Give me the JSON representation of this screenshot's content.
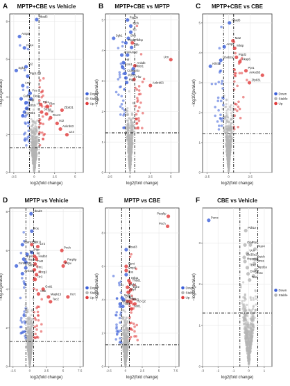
{
  "figure": {
    "panels_common": {
      "xlabel": "log2(fold change)",
      "ylabel": "−log10(pvalue)",
      "legend": {
        "position": "right-middle",
        "entries": [
          {
            "name": "Down",
            "color": "#3b5fd9"
          },
          {
            "name": "Stable",
            "color": "#b4b4b4"
          },
          {
            "name": "Up",
            "color": "#e03a3a"
          }
        ]
      }
    }
  },
  "chart_data": [
    {
      "letter": "A",
      "title": "MPTP+CBE vs Vehicle",
      "type": "scatter",
      "xlim": [
        -3,
        6
      ],
      "ylim": [
        0,
        8.4
      ],
      "xticks": [
        -2.5,
        0,
        2.5,
        5
      ],
      "yticks": [
        0,
        2,
        4,
        6,
        8
      ],
      "vlines": [
        -0.58,
        0.58
      ],
      "hline": 1.3,
      "legend": true,
      "labeled_points": [
        {
          "label": "Hbad3",
          "x": 0.3,
          "y": 8.1,
          "class": "Down"
        },
        {
          "label": "Antp2",
          "x": -1.8,
          "y": 7.2,
          "class": "Down"
        },
        {
          "label": "Pdk4",
          "x": -1.2,
          "y": 6.6,
          "class": "Down"
        },
        {
          "label": "Tc2",
          "x": -1.0,
          "y": 5.6,
          "class": "Down"
        },
        {
          "label": "Sgk1",
          "x": -2.2,
          "y": 5.4,
          "class": "Down"
        },
        {
          "label": "Ppp1r3d",
          "x": -0.8,
          "y": 5.1,
          "class": "Down"
        },
        {
          "label": "Amn",
          "x": -1.4,
          "y": 4.6,
          "class": "Down"
        },
        {
          "label": "Fos",
          "x": -0.5,
          "y": 4.2,
          "class": "Down"
        },
        {
          "label": "Gsbs",
          "x": -1.6,
          "y": 3.9,
          "class": "Down"
        },
        {
          "label": "Dio2",
          "x": -0.4,
          "y": 3.9,
          "class": "Down"
        },
        {
          "label": "Nebl",
          "x": -1.0,
          "y": 3.7,
          "class": "Down"
        },
        {
          "label": "Ptk1",
          "x": 0.8,
          "y": 3.6,
          "class": "Up"
        },
        {
          "label": "Klf15",
          "x": -0.9,
          "y": 3.4,
          "class": "Down"
        },
        {
          "label": "Rbx",
          "x": 1.6,
          "y": 3.5,
          "class": "Up"
        },
        {
          "label": "Stc",
          "x": -1.2,
          "y": 3.2,
          "class": "Down"
        },
        {
          "label": "Cyp8b1",
          "x": -1.4,
          "y": 3.0,
          "class": "Down"
        },
        {
          "label": "Slc6a",
          "x": 0.9,
          "y": 3.2,
          "class": "Up"
        },
        {
          "label": "Ffar",
          "x": 1.5,
          "y": 3.1,
          "class": "Up"
        },
        {
          "label": "Rcor2",
          "x": 2.0,
          "y": 2.9,
          "class": "Up"
        },
        {
          "label": "Ist2",
          "x": 2.8,
          "y": 2.6,
          "class": "Up"
        },
        {
          "label": "Zfp831",
          "x": 3.4,
          "y": 3.3,
          "class": "Up"
        },
        {
          "label": "Ankrd63",
          "x": 3.2,
          "y": 2.3,
          "class": "Up"
        },
        {
          "label": "Ucn",
          "x": 4.0,
          "y": 2.0,
          "class": "Up"
        }
      ]
    },
    {
      "letter": "B",
      "title": "MPTP+CBE vs MPTP",
      "type": "scatter",
      "xlim": [
        -3,
        6
      ],
      "ylim": [
        0,
        5.2
      ],
      "xticks": [
        -2.5,
        0,
        2.5,
        5
      ],
      "yticks": [
        0,
        1,
        2,
        3,
        4,
        5
      ],
      "vlines": [
        -0.58,
        0.58
      ],
      "hline": 1.3,
      "legend": false,
      "labeled_points": [
        {
          "label": "Ppp3n",
          "x": -0.3,
          "y": 5.0,
          "class": "Down"
        },
        {
          "label": "Ptch",
          "x": 0.1,
          "y": 4.8,
          "class": "Down"
        },
        {
          "label": "Fn",
          "x": 0.1,
          "y": 4.6,
          "class": "Down"
        },
        {
          "label": "Sgk1",
          "x": -2.0,
          "y": 4.4,
          "class": "Down"
        },
        {
          "label": "Sfrp",
          "x": -0.2,
          "y": 4.4,
          "class": "Down"
        },
        {
          "label": "Pfkfbp",
          "x": 0.3,
          "y": 4.25,
          "class": "Up"
        },
        {
          "label": "Ptpdc",
          "x": -0.5,
          "y": 4.25,
          "class": "Down"
        },
        {
          "label": "Hbb",
          "x": 0.2,
          "y": 4.1,
          "class": "Down"
        },
        {
          "label": "Amnd",
          "x": -0.3,
          "y": 3.85,
          "class": "Down"
        },
        {
          "label": "Amn",
          "x": -1.0,
          "y": 3.85,
          "class": "Down"
        },
        {
          "label": "Hlf",
          "x": -0.8,
          "y": 3.6,
          "class": "Down"
        },
        {
          "label": "Ucn",
          "x": 5.0,
          "y": 3.7,
          "class": "Up"
        },
        {
          "label": "Ankdb",
          "x": 0.6,
          "y": 3.5,
          "class": "Up"
        },
        {
          "label": "Ecm1",
          "x": -0.9,
          "y": 3.45,
          "class": "Down"
        },
        {
          "label": "Pklot1",
          "x": 0.4,
          "y": 3.4,
          "class": "Down"
        },
        {
          "label": "Cidea",
          "x": -0.6,
          "y": 3.25,
          "class": "Down"
        },
        {
          "label": "Stx",
          "x": 0.4,
          "y": 3.25,
          "class": "Down"
        },
        {
          "label": "Pdzrn",
          "x": -0.5,
          "y": 3.1,
          "class": "Down"
        },
        {
          "label": "Ffar",
          "x": 0.5,
          "y": 3.05,
          "class": "Up"
        },
        {
          "label": "Ptgs",
          "x": -0.4,
          "y": 2.95,
          "class": "Down"
        },
        {
          "label": "Ankrd63",
          "x": 2.5,
          "y": 2.85,
          "class": "Up"
        }
      ]
    },
    {
      "letter": "C",
      "title": "MPTP+CBE vs CBE",
      "type": "scatter",
      "xlim": [
        -3,
        5
      ],
      "ylim": [
        0,
        5.3
      ],
      "xticks": [
        -2.5,
        0,
        2.5
      ],
      "yticks": [
        0,
        1,
        2,
        3,
        4,
        5
      ],
      "vlines": [
        -0.58,
        0.58
      ],
      "hline": 1.3,
      "legend": true,
      "labeled_points": [
        {
          "label": "Hbad3",
          "x": 0.1,
          "y": 5.0,
          "class": "Down"
        },
        {
          "label": "Ma2",
          "x": 0.5,
          "y": 4.4,
          "class": "Up"
        },
        {
          "label": "Antp2",
          "x": -0.5,
          "y": 4.2,
          "class": "Down"
        },
        {
          "label": "Mlxip",
          "x": 0.7,
          "y": 4.15,
          "class": "Up"
        },
        {
          "label": "Ptgd2",
          "x": 0.9,
          "y": 3.85,
          "class": "Up"
        },
        {
          "label": "Ubsb2a",
          "x": -0.9,
          "y": 3.75,
          "class": "Down"
        },
        {
          "label": "Akap6",
          "x": 1.3,
          "y": 3.7,
          "class": "Up"
        },
        {
          "label": "Klhl11",
          "x": -2.1,
          "y": 3.55,
          "class": "Down"
        },
        {
          "label": "Ppr1",
          "x": 2.0,
          "y": 3.4,
          "class": "Up"
        },
        {
          "label": "Ankrd63",
          "x": 3.9,
          "y": 3.25,
          "class": "Up"
        },
        {
          "label": "Zfp831",
          "x": 2.4,
          "y": 3.0,
          "class": "Up"
        }
      ]
    },
    {
      "letter": "D",
      "title": "MPTP vs Vehicle",
      "type": "scatter",
      "xlim": [
        -3,
        8
      ],
      "ylim": [
        0,
        8.2
      ],
      "xticks": [
        -2.5,
        0,
        2.5,
        5,
        7.5
      ],
      "yticks": [
        0,
        2,
        4,
        6,
        8
      ],
      "vlines": [
        -0.58,
        0.58
      ],
      "hline": 1.3,
      "legend": true,
      "labeled_points": [
        {
          "label": "Hbad3",
          "x": 0.2,
          "y": 7.9,
          "class": "Down"
        },
        {
          "label": "Fos",
          "x": 0.3,
          "y": 7.0,
          "class": "Down"
        },
        {
          "label": "Manch11",
          "x": -1.1,
          "y": 6.3,
          "class": "Down"
        },
        {
          "label": "Stk11",
          "x": 0.3,
          "y": 6.3,
          "class": "Up"
        },
        {
          "label": "Lrr2",
          "x": 1.2,
          "y": 6.2,
          "class": "Up"
        },
        {
          "label": "Ptpn",
          "x": 0.3,
          "y": 5.9,
          "class": "Down"
        },
        {
          "label": "Pnch",
          "x": 4.8,
          "y": 6.0,
          "class": "Up"
        },
        {
          "label": "Tyr",
          "x": -0.4,
          "y": 5.8,
          "class": "Down"
        },
        {
          "label": "Ftl",
          "x": 0.7,
          "y": 5.7,
          "class": "Up"
        },
        {
          "label": "Nrps1",
          "x": -0.9,
          "y": 5.55,
          "class": "Down"
        },
        {
          "label": "Hsdb3",
          "x": 1.0,
          "y": 5.55,
          "class": "Up"
        },
        {
          "label": "Hspa",
          "x": -0.6,
          "y": 5.4,
          "class": "Down"
        },
        {
          "label": "Parplip",
          "x": 5.3,
          "y": 5.4,
          "class": "Up"
        },
        {
          "label": "Fat2",
          "x": 0.8,
          "y": 5.3,
          "class": "Up"
        },
        {
          "label": "Gm55335",
          "x": -2.0,
          "y": 5.2,
          "class": "Down"
        },
        {
          "label": "Prpv",
          "x": 5.0,
          "y": 5.2,
          "class": "Up"
        },
        {
          "label": "Sam2",
          "x": -0.6,
          "y": 5.1,
          "class": "Down"
        },
        {
          "label": "Cm1",
          "x": 0.7,
          "y": 5.0,
          "class": "Up"
        },
        {
          "label": "Ankrd5",
          "x": -1.1,
          "y": 4.8,
          "class": "Down"
        },
        {
          "label": "Abcg2",
          "x": 1.0,
          "y": 4.75,
          "class": "Up"
        },
        {
          "label": "Ttr3",
          "x": 0.8,
          "y": 4.5,
          "class": "Up"
        },
        {
          "label": "Gstt1",
          "x": 2.0,
          "y": 4.0,
          "class": "Up"
        },
        {
          "label": "Hbb",
          "x": 1.3,
          "y": 3.75,
          "class": "Up"
        },
        {
          "label": "Mapk15",
          "x": 2.8,
          "y": 3.6,
          "class": "Up"
        },
        {
          "label": "Tac2",
          "x": 3.1,
          "y": 3.35,
          "class": "Up"
        },
        {
          "label": "Hcrt",
          "x": 5.7,
          "y": 3.6,
          "class": "Up"
        }
      ]
    },
    {
      "letter": "E",
      "title": "MPTP vs CBE",
      "type": "scatter",
      "xlim": [
        -3,
        8
      ],
      "ylim": [
        0,
        9.5
      ],
      "xticks": [
        -2.5,
        0,
        2.5,
        5,
        7.5
      ],
      "yticks": [
        0,
        2,
        4,
        6,
        8
      ],
      "vlines": [
        -0.58,
        0.58
      ],
      "hline": 1.3,
      "legend": true,
      "labeled_points": [
        {
          "label": "Parplip",
          "x": 6.4,
          "y": 9.0,
          "class": "Up"
        },
        {
          "label": "Pnch",
          "x": 6.3,
          "y": 8.4,
          "class": "Up"
        },
        {
          "label": "Hbad3",
          "x": 0.1,
          "y": 7.0,
          "class": "Down"
        },
        {
          "label": "Npnt",
          "x": 0.1,
          "y": 6.0,
          "class": "Up"
        },
        {
          "label": "Pmp6",
          "x": 0.1,
          "y": 5.75,
          "class": "Up"
        },
        {
          "label": "Fos",
          "x": 0.1,
          "y": 5.5,
          "class": "Down"
        },
        {
          "label": "Stk11",
          "x": 0.5,
          "y": 5.15,
          "class": "Up"
        },
        {
          "label": "Thbd1",
          "x": 0.7,
          "y": 5.0,
          "class": "Up"
        },
        {
          "label": "Sgk1",
          "x": 0.3,
          "y": 4.75,
          "class": "Up"
        },
        {
          "label": "Ddr2",
          "x": 0.8,
          "y": 4.6,
          "class": "Up"
        },
        {
          "label": "Myrf",
          "x": 0.4,
          "y": 4.45,
          "class": "Up"
        },
        {
          "label": "Nebl",
          "x": -0.5,
          "y": 4.1,
          "class": "Down"
        },
        {
          "label": "Pcw1",
          "x": -0.3,
          "y": 4.0,
          "class": "Down"
        },
        {
          "label": "Prpn",
          "x": 0.3,
          "y": 3.9,
          "class": "Up"
        },
        {
          "label": "Ucp1",
          "x": -0.8,
          "y": 3.75,
          "class": "Down"
        },
        {
          "label": "Ubs",
          "x": -0.4,
          "y": 3.6,
          "class": "Down"
        },
        {
          "label": "Fat1",
          "x": 0.8,
          "y": 3.85,
          "class": "Up"
        },
        {
          "label": "H2-Q2",
          "x": 1.4,
          "y": 3.75,
          "class": "Up"
        },
        {
          "label": "Gstt1",
          "x": 0.9,
          "y": 3.45,
          "class": "Up"
        }
      ]
    },
    {
      "letter": "F",
      "title": "CBE vs Vehicle",
      "type": "scatter",
      "xlim": [
        -3,
        1.5
      ],
      "ylim": [
        0,
        3.85
      ],
      "xticks": [
        -3,
        -2,
        -1,
        0,
        1
      ],
      "yticks": [
        0,
        1,
        2,
        3
      ],
      "vlines": [
        -0.58,
        0.58
      ],
      "hline": 1.3,
      "legend": true,
      "labeled_points": [
        {
          "label": "Pomc",
          "x": -2.6,
          "y": 3.55,
          "class": "Down"
        },
        {
          "label": "Pdk1e",
          "x": -0.2,
          "y": 3.3,
          "class": "Stable"
        },
        {
          "label": "Olah",
          "x": -0.25,
          "y": 2.95,
          "class": "Stable"
        },
        {
          "label": "Ppr1",
          "x": 0.1,
          "y": 2.95,
          "class": "Stable"
        },
        {
          "label": "Pkar4",
          "x": 0.4,
          "y": 2.85,
          "class": "Stable"
        },
        {
          "label": "Ucn",
          "x": -0.1,
          "y": 2.75,
          "class": "Stable"
        },
        {
          "label": "Slc35e2",
          "x": -0.3,
          "y": 2.65,
          "class": "Stable"
        },
        {
          "label": "Zwich",
          "x": 0.4,
          "y": 2.6,
          "class": "Stable"
        },
        {
          "label": "Hsppxd1",
          "x": -0.25,
          "y": 2.55,
          "class": "Stable"
        },
        {
          "label": "Timss",
          "x": 0.35,
          "y": 2.5,
          "class": "Stable"
        },
        {
          "label": "Tbx2",
          "x": -0.1,
          "y": 2.4,
          "class": "Stable"
        },
        {
          "label": "Mpd2a",
          "x": 0.45,
          "y": 2.35,
          "class": "Stable"
        },
        {
          "label": "Dnah7",
          "x": -0.05,
          "y": 2.25,
          "class": "Stable"
        },
        {
          "label": "Amsc",
          "x": 0.3,
          "y": 2.2,
          "class": "Stable"
        },
        {
          "label": "Tcim",
          "x": 0.05,
          "y": 2.1,
          "class": "Stable"
        }
      ]
    }
  ]
}
